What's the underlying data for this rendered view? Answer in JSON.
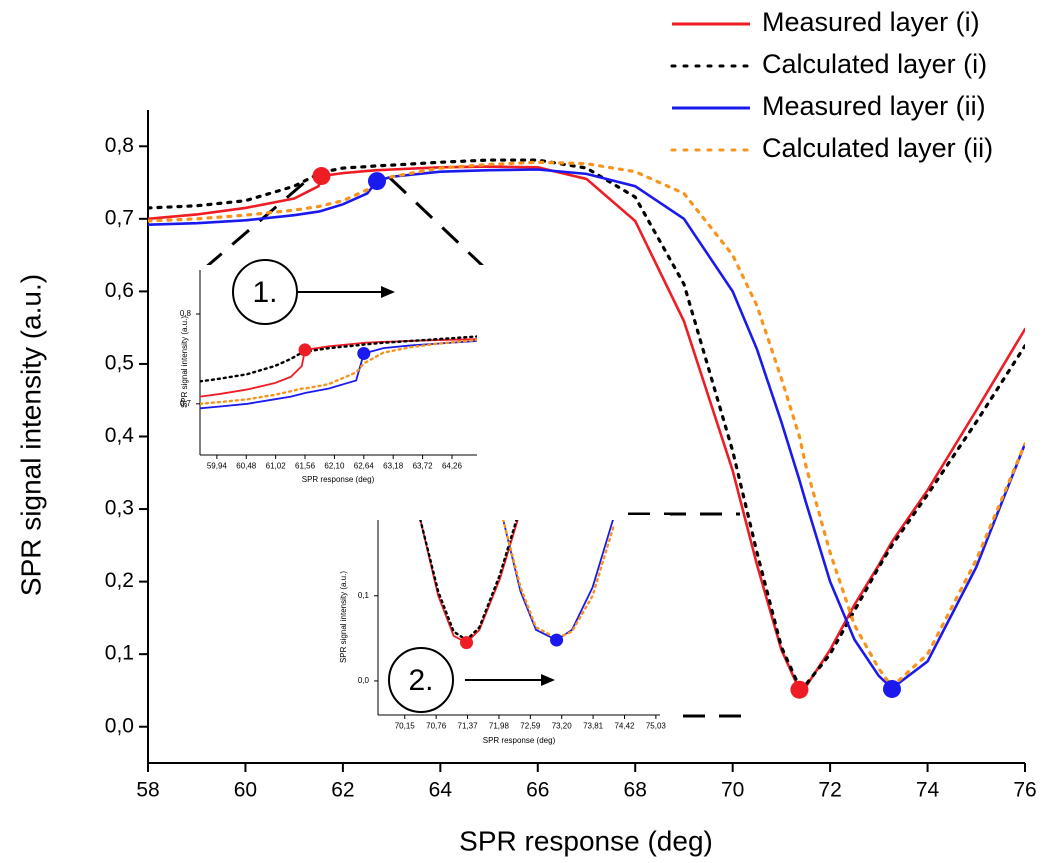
{
  "chart_data": [
    {
      "type": "line",
      "x_label": "SPR response (deg)",
      "y_label": "SPR signal intensity (a.u.)",
      "xlim": [
        58,
        76
      ],
      "ylim": [
        -0.05,
        0.85
      ],
      "xticks": [
        58,
        60,
        62,
        64,
        66,
        68,
        70,
        72,
        74,
        76
      ],
      "yticks": [
        {
          "value": 0,
          "label": "0,0"
        },
        {
          "value": 0.1,
          "label": "0,1"
        },
        {
          "value": 0.2,
          "label": "0,2"
        },
        {
          "value": 0.3,
          "label": "0,3"
        },
        {
          "value": 0.4,
          "label": "0,4"
        },
        {
          "value": 0.5,
          "label": "0,5"
        },
        {
          "value": 0.6,
          "label": "0,6"
        },
        {
          "value": 0.7,
          "label": "0,7"
        },
        {
          "value": 0.8,
          "label": "0,8"
        }
      ],
      "legend": "upper right",
      "x": [
        58,
        59,
        60,
        61,
        61.5,
        61.56,
        62,
        62.5,
        62.7,
        63,
        64,
        65,
        66,
        67,
        68,
        69,
        70,
        70.5,
        71,
        71.37,
        71.5,
        72,
        72.5,
        73,
        73.27,
        74,
        75,
        76
      ],
      "series": [
        {
          "name": "Measured layer (i)",
          "color": "#ee1c25",
          "style": "solid",
          "values": [
            0.7,
            0.706,
            0.715,
            0.728,
            0.745,
            0.759,
            0.763,
            0.766,
            0.767,
            0.768,
            0.771,
            0.772,
            0.771,
            0.755,
            0.697,
            0.559,
            0.353,
            0.223,
            0.106,
            0.051,
            0.055,
            0.106,
            0.168,
            0.223,
            0.255,
            0.326,
            0.436,
            0.548
          ]
        },
        {
          "name": "Calculated layer (i)",
          "color": "#000000",
          "style": "dotted",
          "values": [
            0.715,
            0.718,
            0.725,
            0.745,
            0.762,
            0.764,
            0.77,
            0.772,
            0.773,
            0.774,
            0.778,
            0.781,
            0.781,
            0.77,
            0.73,
            0.61,
            0.38,
            0.24,
            0.11,
            0.055,
            0.058,
            0.1,
            0.16,
            0.22,
            0.25,
            0.32,
            0.42,
            0.525
          ]
        },
        {
          "name": "Measured layer (ii)",
          "color": "#1a1aee",
          "style": "solid",
          "values": [
            0.692,
            0.694,
            0.698,
            0.705,
            0.71,
            0.711,
            0.72,
            0.735,
            0.752,
            0.758,
            0.765,
            0.767,
            0.768,
            0.762,
            0.745,
            0.7,
            0.6,
            0.52,
            0.42,
            0.34,
            0.31,
            0.2,
            0.12,
            0.07,
            0.053,
            0.09,
            0.22,
            0.39
          ]
        },
        {
          "name": "Calculated layer (ii)",
          "color": "#f7941d",
          "style": "dotted",
          "values": [
            0.697,
            0.7,
            0.705,
            0.712,
            0.717,
            0.718,
            0.725,
            0.74,
            0.75,
            0.758,
            0.77,
            0.775,
            0.778,
            0.776,
            0.765,
            0.735,
            0.65,
            0.58,
            0.48,
            0.4,
            0.36,
            0.24,
            0.14,
            0.08,
            0.055,
            0.1,
            0.23,
            0.39
          ]
        }
      ],
      "points": [
        {
          "x": 61.56,
          "y": 0.759,
          "color": "#ee1c25"
        },
        {
          "x": 62.7,
          "y": 0.752,
          "color": "#1a1aee"
        },
        {
          "x": 71.37,
          "y": 0.051,
          "color": "#ee1c25"
        },
        {
          "x": 73.27,
          "y": 0.052,
          "color": "#1a1aee"
        }
      ]
    },
    {
      "type": "line",
      "label": "1.",
      "x_label": "SPR response (deg)",
      "y_label": "SPR signal intensity (a.u.)",
      "xlim": [
        59.63,
        64.72
      ],
      "ylim": [
        0.643,
        0.849
      ],
      "xticks": [
        {
          "value": 59.94,
          "label": "59,94"
        },
        {
          "value": 60.48,
          "label": "60,48"
        },
        {
          "value": 61.02,
          "label": "61,02"
        },
        {
          "value": 61.56,
          "label": "61,56"
        },
        {
          "value": 62.1,
          "label": "62,10"
        },
        {
          "value": 62.64,
          "label": "62,64"
        },
        {
          "value": 63.18,
          "label": "63,18"
        },
        {
          "value": 63.72,
          "label": "63,72"
        },
        {
          "value": 64.26,
          "label": "64,26"
        }
      ],
      "yticks": [
        {
          "value": 0.7,
          "label": "0,7"
        },
        {
          "value": 0.8,
          "label": "0,8"
        }
      ],
      "x": [
        59.63,
        60,
        60.5,
        61,
        61.3,
        61.5,
        61.56,
        62,
        62.5,
        62.64,
        63,
        63.5,
        64,
        64.72
      ],
      "series": [
        {
          "color": "#ee1c25",
          "style": "solid",
          "values": [
            0.708,
            0.711,
            0.716,
            0.723,
            0.73,
            0.742,
            0.76,
            0.764,
            0.767,
            0.768,
            0.769,
            0.77,
            0.771,
            0.772
          ]
        },
        {
          "color": "#000000",
          "style": "dotted",
          "values": [
            0.725,
            0.728,
            0.733,
            0.742,
            0.75,
            0.757,
            0.758,
            0.762,
            0.765,
            0.766,
            0.768,
            0.77,
            0.772,
            0.775
          ]
        },
        {
          "color": "#1a1aee",
          "style": "solid",
          "values": [
            0.695,
            0.697,
            0.7,
            0.705,
            0.708,
            0.711,
            0.712,
            0.717,
            0.726,
            0.756,
            0.762,
            0.765,
            0.767,
            0.77
          ]
        },
        {
          "color": "#f7941d",
          "style": "dotted",
          "values": [
            0.7,
            0.702,
            0.705,
            0.71,
            0.714,
            0.717,
            0.717,
            0.722,
            0.735,
            0.745,
            0.757,
            0.763,
            0.767,
            0.771
          ]
        }
      ],
      "points": [
        {
          "x": 61.56,
          "y": 0.76,
          "color": "#ee1c25"
        },
        {
          "x": 62.64,
          "y": 0.756,
          "color": "#1a1aee"
        }
      ]
    },
    {
      "type": "line",
      "label": "2.",
      "x_label": "SPR response (deg)",
      "y_label": "SPR signal intensity (a.u.)",
      "xlim": [
        69.63,
        75.11
      ],
      "ylim": [
        -0.04,
        0.189
      ],
      "xticks": [
        {
          "value": 70.15,
          "label": "70,15"
        },
        {
          "value": 70.76,
          "label": "70,76"
        },
        {
          "value": 71.37,
          "label": "71,37"
        },
        {
          "value": 71.98,
          "label": "71,98"
        },
        {
          "value": 72.59,
          "label": "72,59"
        },
        {
          "value": 73.2,
          "label": "73,20"
        },
        {
          "value": 73.81,
          "label": "73,81"
        },
        {
          "value": 74.42,
          "label": "74,42"
        },
        {
          "value": 75.03,
          "label": "75,03"
        }
      ],
      "yticks": [
        {
          "value": 0,
          "label": "0,0"
        },
        {
          "value": 0.1,
          "label": "0,1"
        }
      ],
      "series": [
        {
          "color": "#ee1c25",
          "style": "solid",
          "x": [
            70.45,
            70.8,
            71.1,
            71.35,
            71.6,
            72.0,
            72.35
          ],
          "values": [
            0.19,
            0.1,
            0.053,
            0.045,
            0.06,
            0.12,
            0.19
          ]
        },
        {
          "color": "#000000",
          "style": "dotted",
          "x": [
            70.45,
            70.8,
            71.1,
            71.35,
            71.6,
            72.0,
            72.35
          ],
          "values": [
            0.19,
            0.105,
            0.058,
            0.048,
            0.063,
            0.125,
            0.195
          ]
        },
        {
          "color": "#1a1aee",
          "style": "solid",
          "x": [
            72.06,
            72.4,
            72.7,
            73.1,
            73.4,
            73.8,
            74.2
          ],
          "values": [
            0.19,
            0.105,
            0.06,
            0.048,
            0.06,
            0.11,
            0.19
          ]
        },
        {
          "color": "#f7941d",
          "style": "dotted",
          "x": [
            72.06,
            72.4,
            72.7,
            73.1,
            73.4,
            73.8,
            74.2
          ],
          "values": [
            0.19,
            0.11,
            0.063,
            0.05,
            0.058,
            0.1,
            0.18
          ]
        }
      ],
      "points": [
        {
          "x": 71.35,
          "y": 0.045,
          "color": "#ee1c25"
        },
        {
          "x": 73.1,
          "y": 0.048,
          "color": "#1a1aee"
        }
      ]
    }
  ]
}
